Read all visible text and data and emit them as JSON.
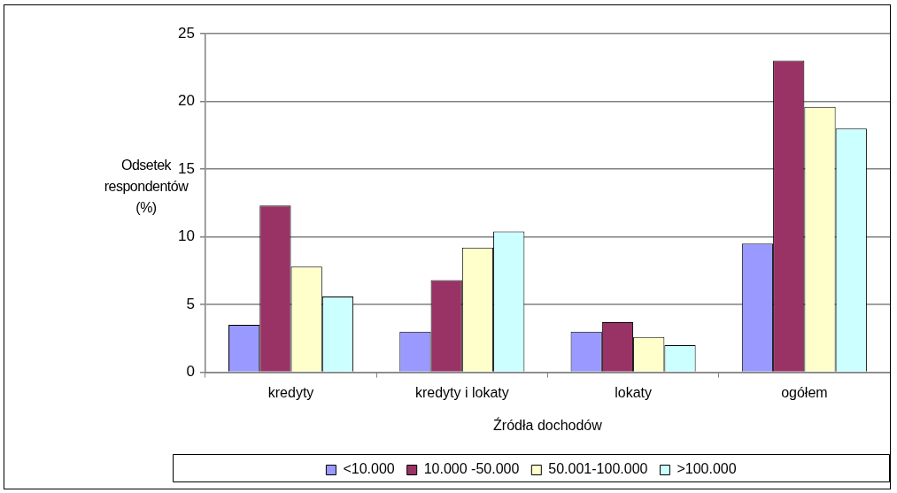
{
  "chart_data": {
    "type": "bar",
    "xlabel": "Źródła dochodów",
    "ylabel": "Odsetek respondentów (%)",
    "categories": [
      "kredyty",
      "kredyty i lokaty",
      "lokaty",
      "ogółem"
    ],
    "series": [
      {
        "name": "<10.000",
        "color": "#9999ff",
        "values": [
          3.5,
          3.0,
          3.0,
          9.5
        ]
      },
      {
        "name": "10.000 -50.000",
        "color": "#993366",
        "values": [
          12.3,
          6.8,
          3.7,
          23.0
        ]
      },
      {
        "name": "50.001-100.000",
        "color": "#ffffcc",
        "values": [
          7.8,
          9.2,
          2.6,
          19.6
        ]
      },
      {
        "name": ">100.000",
        "color": "#ccffff",
        "values": [
          5.6,
          10.4,
          2.0,
          18.0
        ]
      }
    ],
    "ylim": [
      0,
      25
    ],
    "yticks": [
      0,
      5,
      10,
      15,
      20,
      25
    ],
    "grid": "y",
    "legend": "bottom"
  }
}
